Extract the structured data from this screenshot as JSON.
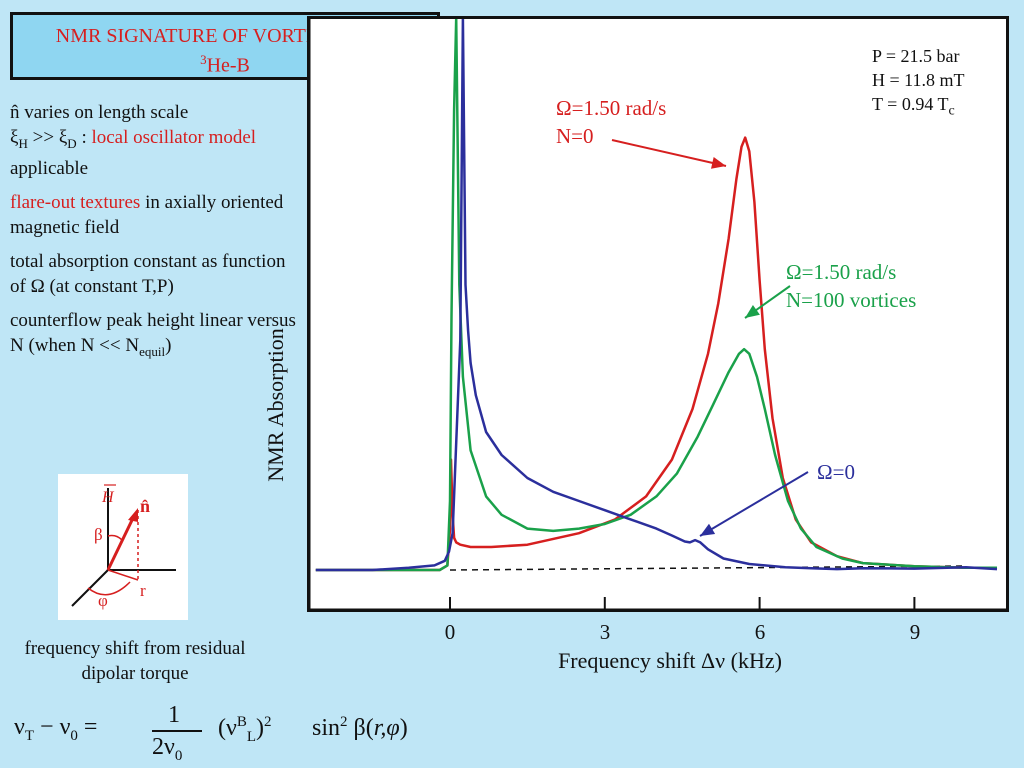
{
  "title": {
    "line1": "NMR SIGNATURE OF VORTEX LINES",
    "line2_sup": "3",
    "line2": "He-B"
  },
  "bullets": {
    "b1_hat": "n̂",
    "b1_text1": " varies on length scale",
    "b1_xi1": "ξ",
    "b1_sub1": "H",
    "b1_gg": " >> ",
    "b1_xi2": "ξ",
    "b1_sub2": "D",
    "b1_colon": " : ",
    "b1_red": "local oscillator model",
    "b1_tail": " applicable",
    "b2_red": "flare-out textures",
    "b2_tail": " in axially oriented magnetic field",
    "b3": "total absorption constant as function of Ω (at constant T,P)",
    "b4_text": "counterflow peak height linear versus N (when N << N",
    "b4_sub": "equil",
    "b4_close": ")"
  },
  "params": {
    "p": "P = 21.5 bar",
    "h": "H = 11.8 mT",
    "t": "T = 0.94 T",
    "t_sub": "c"
  },
  "annotations": {
    "red1": "Ω=1.50 rad/s",
    "red2": "N=0",
    "green1": "Ω=1.50 rad/s",
    "green2": "N=100 vortices",
    "blue1": "Ω=0"
  },
  "inset": {
    "h_label": "H",
    "n_label": "n̂",
    "beta": "β",
    "phi": "φ",
    "r": "r"
  },
  "caption": "frequency shift from residual dipolar torque",
  "formula": {
    "nu_t": "ν",
    "t_sub": "T",
    "minus": " − ν",
    "zero_sub": "0",
    "eq": " =",
    "num": "1",
    "den": "2ν",
    "den_sub": "0",
    "nul": "(ν",
    "l_sup": "B",
    "l_sub": "L",
    "close": ")",
    "sq": "2",
    "sin": "sin",
    "sin_sup": "2",
    "beta": " β(",
    "args": "r,φ",
    "end": ")"
  },
  "chart_data": {
    "type": "line",
    "xlabel": "Frequency shift Δν (kHz)",
    "ylabel": "NMR Absorption",
    "xlim": [
      -2.6,
      10.6
    ],
    "ylim": [
      0,
      1.0
    ],
    "xticks": [
      "0",
      "3",
      "6",
      "9"
    ],
    "xtick_values": [
      0,
      3,
      6,
      9
    ],
    "colors": {
      "red": "#d61f1f",
      "green": "#1aa14a",
      "blue": "#2b2f9c",
      "baseline": "#111111"
    },
    "series": [
      {
        "name": "Ω=1.50 rad/s N=0",
        "color": "red",
        "x": [
          -2.6,
          -1.0,
          -0.2,
          -0.05,
          0.0,
          0.02,
          0.05,
          0.08,
          0.12,
          0.2,
          0.4,
          0.8,
          1.5,
          2.5,
          3.2,
          3.8,
          4.3,
          4.7,
          5.0,
          5.2,
          5.4,
          5.55,
          5.65,
          5.72,
          5.8,
          5.9,
          6.0,
          6.1,
          6.25,
          6.45,
          6.7,
          7.0,
          7.5,
          8.0,
          9.0,
          10.0,
          10.6
        ],
        "y": [
          0.0,
          0.0,
          0.0,
          0.01,
          0.09,
          0.24,
          0.12,
          0.07,
          0.06,
          0.055,
          0.05,
          0.05,
          0.055,
          0.08,
          0.11,
          0.16,
          0.24,
          0.35,
          0.47,
          0.58,
          0.72,
          0.85,
          0.92,
          0.94,
          0.91,
          0.8,
          0.63,
          0.48,
          0.33,
          0.2,
          0.11,
          0.06,
          0.03,
          0.015,
          0.008,
          0.005,
          0.005
        ]
      },
      {
        "name": "Ω=1.50 rad/s N=100 vortices",
        "color": "green",
        "x": [
          -2.6,
          -1.0,
          -0.2,
          -0.05,
          0.0,
          0.03,
          0.08,
          0.12,
          0.18,
          0.25,
          0.4,
          0.7,
          1.0,
          1.5,
          2.0,
          2.5,
          3.0,
          3.5,
          4.0,
          4.4,
          4.8,
          5.1,
          5.4,
          5.6,
          5.7,
          5.8,
          5.95,
          6.1,
          6.3,
          6.55,
          6.8,
          7.1,
          7.6,
          8.0,
          9.0,
          10.0,
          10.6
        ],
        "y": [
          0.0,
          0.0,
          0.0,
          0.01,
          0.15,
          0.55,
          1.0,
          1.2,
          0.62,
          0.42,
          0.26,
          0.16,
          0.12,
          0.09,
          0.085,
          0.09,
          0.1,
          0.12,
          0.16,
          0.21,
          0.29,
          0.36,
          0.43,
          0.47,
          0.48,
          0.47,
          0.42,
          0.35,
          0.25,
          0.15,
          0.09,
          0.05,
          0.025,
          0.015,
          0.008,
          0.005,
          0.005
        ]
      },
      {
        "name": "Ω=0",
        "color": "blue",
        "x": [
          -2.6,
          -1.5,
          -0.8,
          -0.3,
          -0.1,
          -0.02,
          0.05,
          0.2,
          0.25,
          0.3,
          0.35,
          0.4,
          0.5,
          0.7,
          1.0,
          1.5,
          2.0,
          2.5,
          3.0,
          3.5,
          4.0,
          4.3,
          4.55,
          4.65,
          4.75,
          4.85,
          5.0,
          5.3,
          5.8,
          6.5,
          7.0,
          7.5,
          8.0,
          9.0,
          10.0,
          10.6
        ],
        "y": [
          0.0,
          0.0,
          0.005,
          0.01,
          0.02,
          0.04,
          0.08,
          0.5,
          1.2,
          0.62,
          0.52,
          0.45,
          0.38,
          0.3,
          0.25,
          0.2,
          0.17,
          0.15,
          0.13,
          0.11,
          0.09,
          0.075,
          0.062,
          0.06,
          0.065,
          0.06,
          0.045,
          0.025,
          0.013,
          0.006,
          0.004,
          0.002,
          0.004,
          0.003,
          0.006,
          0.002
        ]
      }
    ],
    "baseline": {
      "x": [
        0.0,
        10.0
      ],
      "y": [
        0.0,
        0.0
      ],
      "style": "dashed"
    }
  }
}
